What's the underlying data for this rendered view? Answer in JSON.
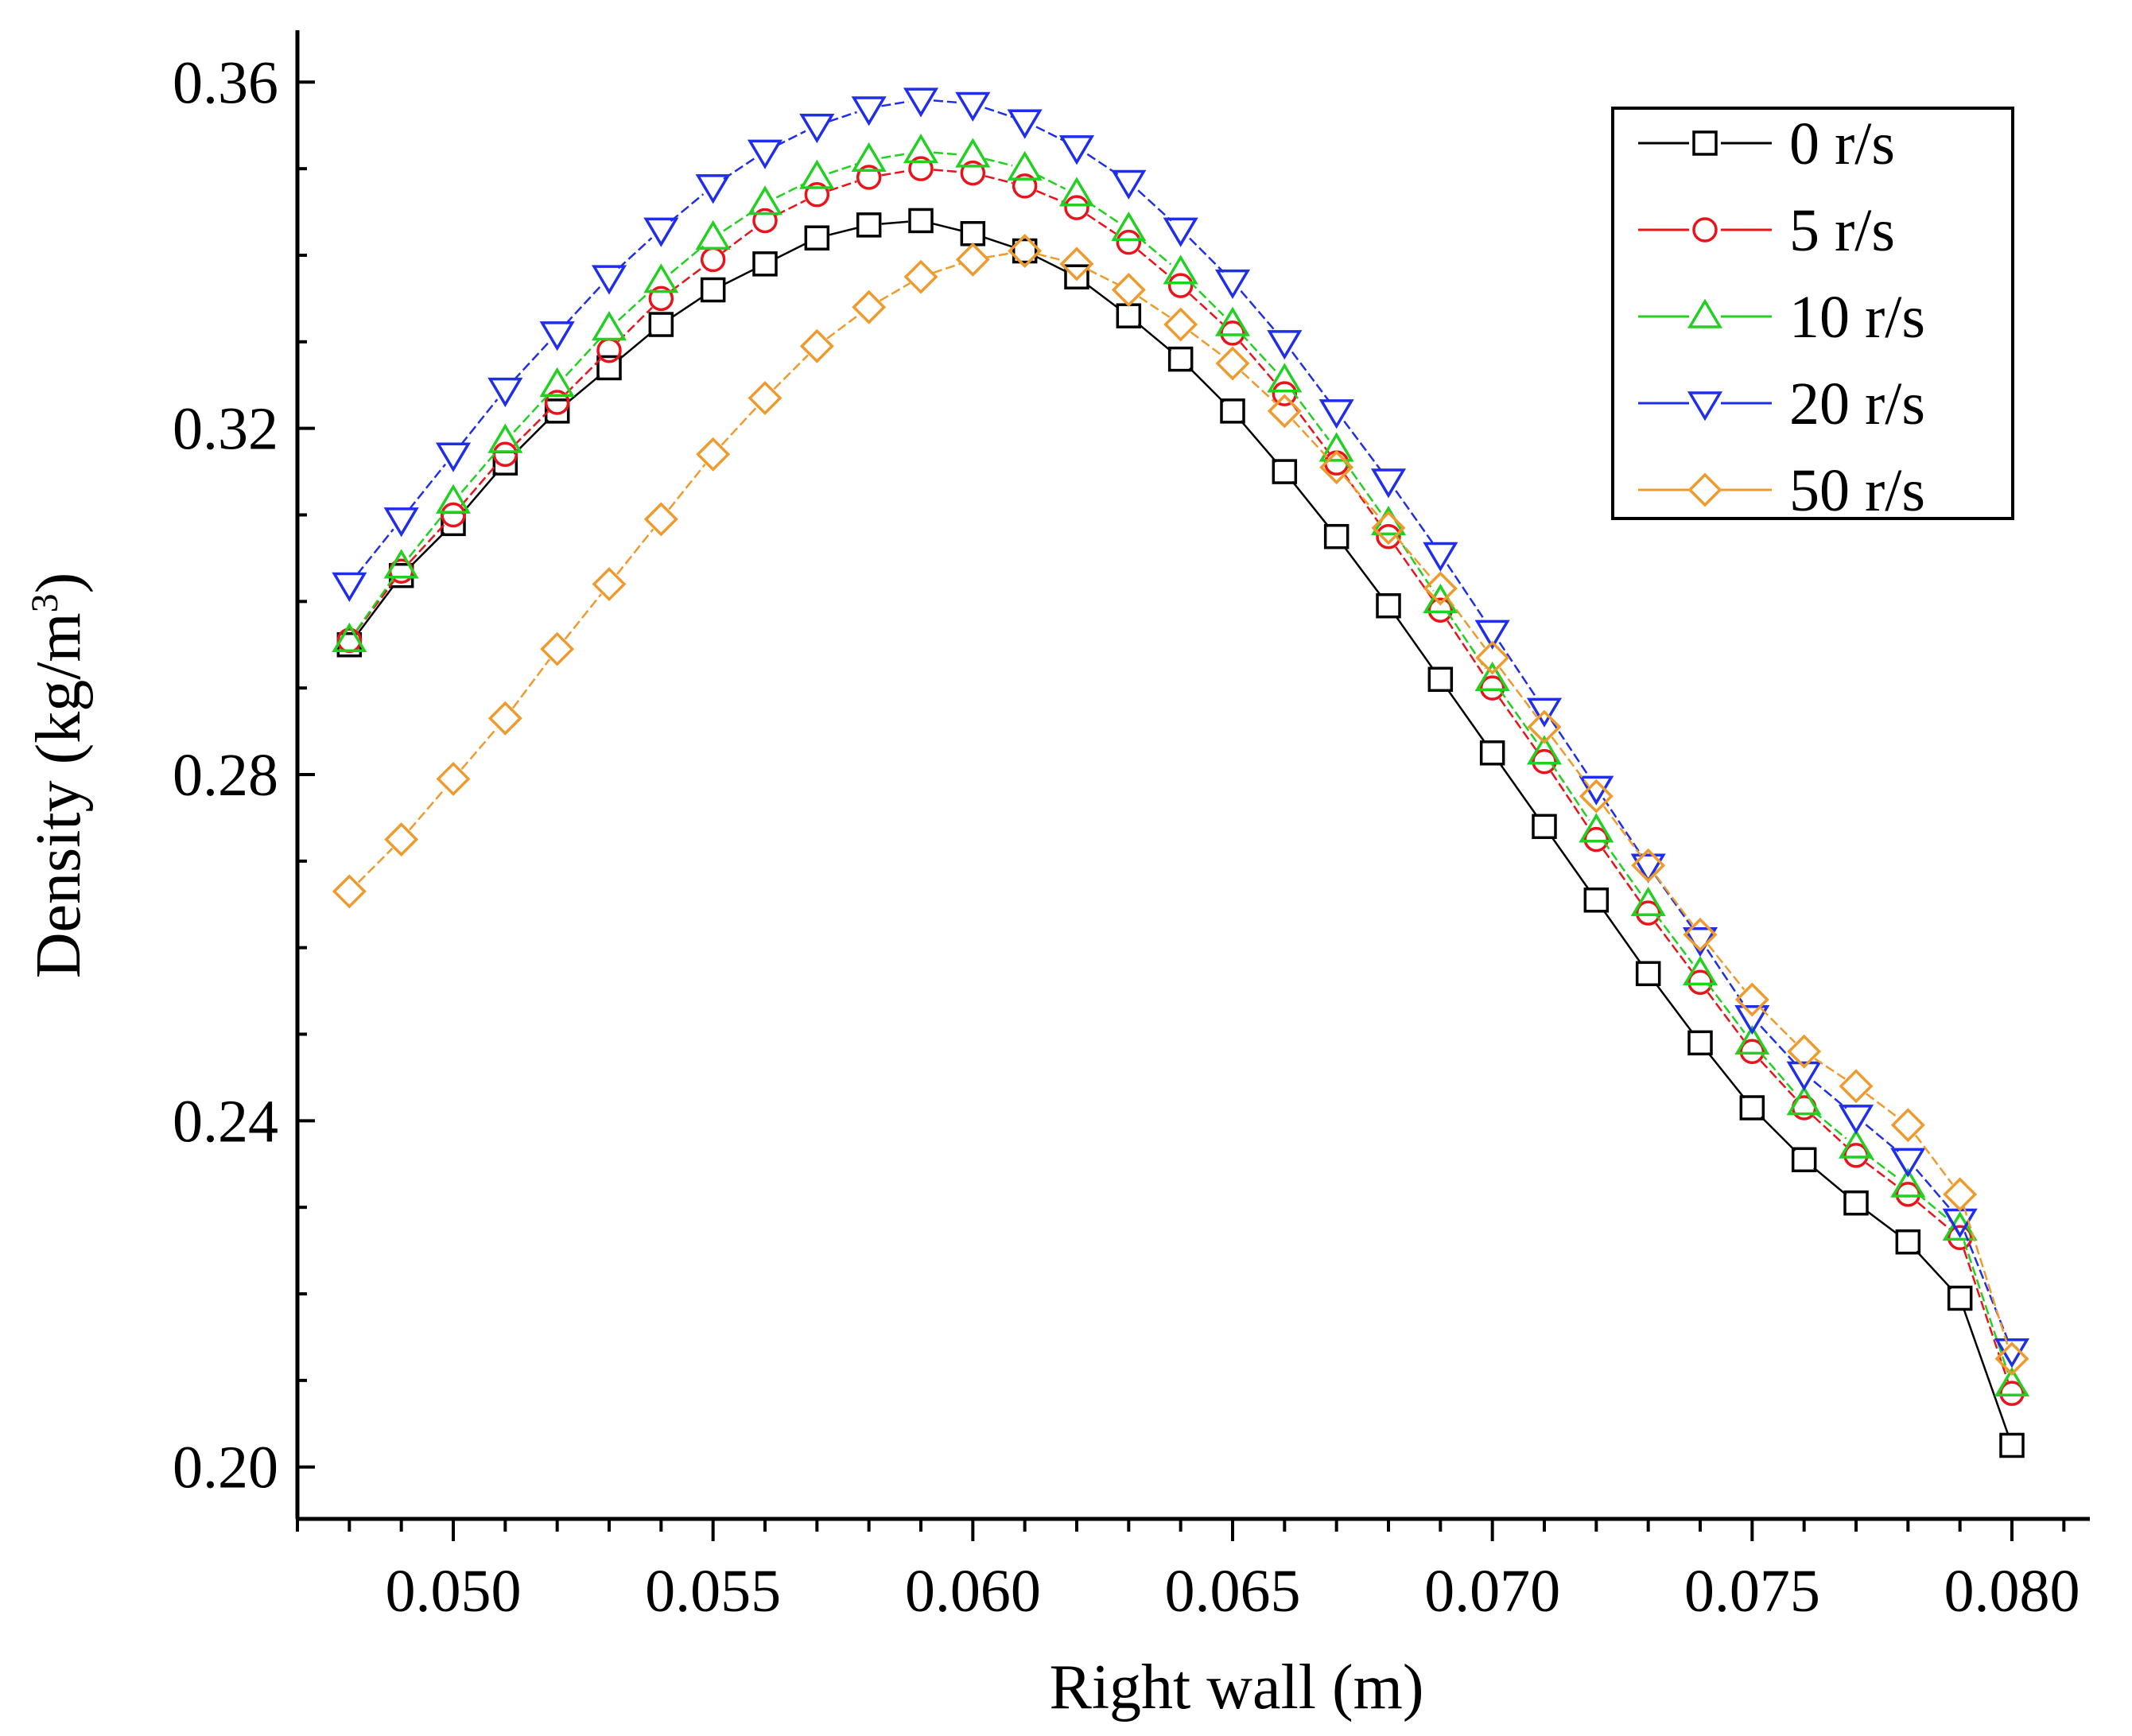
{
  "chart_data": {
    "type": "line",
    "title": "",
    "xlabel": "Right wall (m)",
    "ylabel_main": "Density (kg/m",
    "ylabel_sup": "3",
    "ylabel_close": ")",
    "xlim": [
      0.047,
      0.0815
    ],
    "ylim": [
      0.194,
      0.366
    ],
    "x_ticks": [
      0.05,
      0.055,
      0.06,
      0.065,
      0.07,
      0.075,
      0.08
    ],
    "x_tick_labels": [
      "0.050",
      "0.055",
      "0.060",
      "0.065",
      "0.070",
      "0.075",
      "0.080"
    ],
    "y_ticks": [
      0.2,
      0.24,
      0.28,
      0.32,
      0.36
    ],
    "y_tick_labels": [
      "0.20",
      "0.24",
      "0.28",
      "0.32",
      "0.36"
    ],
    "grid": false,
    "legend_position": "top-right",
    "x": [
      0.048,
      0.049,
      0.05,
      0.051,
      0.052,
      0.053,
      0.054,
      0.055,
      0.056,
      0.057,
      0.058,
      0.059,
      0.06,
      0.061,
      0.062,
      0.063,
      0.064,
      0.065,
      0.066,
      0.067,
      0.068,
      0.069,
      0.07,
      0.071,
      0.072,
      0.073,
      0.074,
      0.075,
      0.076,
      0.077,
      0.078,
      0.079,
      0.08
    ],
    "series": [
      {
        "name": "0 r/s",
        "color": "#000000",
        "marker": "square",
        "values": [
          0.295,
          0.303,
          0.309,
          0.316,
          0.322,
          0.327,
          0.332,
          0.336,
          0.339,
          0.342,
          0.3435,
          0.344,
          0.3425,
          0.3405,
          0.3375,
          0.333,
          0.328,
          0.322,
          0.315,
          0.3075,
          0.2995,
          0.291,
          0.2825,
          0.274,
          0.2655,
          0.257,
          0.249,
          0.2415,
          0.2355,
          0.2305,
          0.226,
          0.2195,
          0.2025
        ]
      },
      {
        "name": "5 r/s",
        "color": "#e8141b",
        "marker": "circle",
        "values": [
          0.2955,
          0.3035,
          0.31,
          0.317,
          0.323,
          0.329,
          0.335,
          0.3395,
          0.344,
          0.347,
          0.349,
          0.35,
          0.3495,
          0.348,
          0.3455,
          0.3415,
          0.3365,
          0.331,
          0.324,
          0.316,
          0.3075,
          0.299,
          0.29,
          0.2815,
          0.2725,
          0.264,
          0.256,
          0.248,
          0.2415,
          0.236,
          0.2315,
          0.2265,
          0.2085
        ]
      },
      {
        "name": "10 r/s",
        "color": "#22d022",
        "marker": "triangle-up",
        "values": [
          0.2955,
          0.304,
          0.3115,
          0.3185,
          0.325,
          0.3315,
          0.337,
          0.342,
          0.346,
          0.349,
          0.351,
          0.352,
          0.3515,
          0.35,
          0.347,
          0.343,
          0.338,
          0.332,
          0.3255,
          0.3175,
          0.309,
          0.3,
          0.291,
          0.2825,
          0.2735,
          0.265,
          0.257,
          0.249,
          0.242,
          0.237,
          0.2325,
          0.2275,
          0.2095
        ]
      },
      {
        "name": "20 r/s",
        "color": "#1f2ee8",
        "marker": "triangle-down",
        "values": [
          0.302,
          0.3095,
          0.317,
          0.3245,
          0.331,
          0.3375,
          0.343,
          0.348,
          0.352,
          0.355,
          0.357,
          0.358,
          0.3575,
          0.3555,
          0.3525,
          0.3485,
          0.343,
          0.337,
          0.33,
          0.322,
          0.314,
          0.3055,
          0.2965,
          0.2875,
          0.2785,
          0.2695,
          0.261,
          0.252,
          0.2455,
          0.2405,
          0.2355,
          0.2285,
          0.2135
        ]
      },
      {
        "name": "50 r/s",
        "color": "#ef9a2c",
        "marker": "diamond",
        "values": [
          0.2665,
          0.2725,
          0.2795,
          0.2865,
          0.2945,
          0.302,
          0.3095,
          0.317,
          0.3235,
          0.3295,
          0.334,
          0.3375,
          0.3395,
          0.3405,
          0.339,
          0.336,
          0.332,
          0.3275,
          0.322,
          0.3155,
          0.3085,
          0.3015,
          0.2935,
          0.2855,
          0.2775,
          0.2695,
          0.2615,
          0.254,
          0.248,
          0.244,
          0.2395,
          0.2315,
          0.2125
        ]
      }
    ]
  }
}
